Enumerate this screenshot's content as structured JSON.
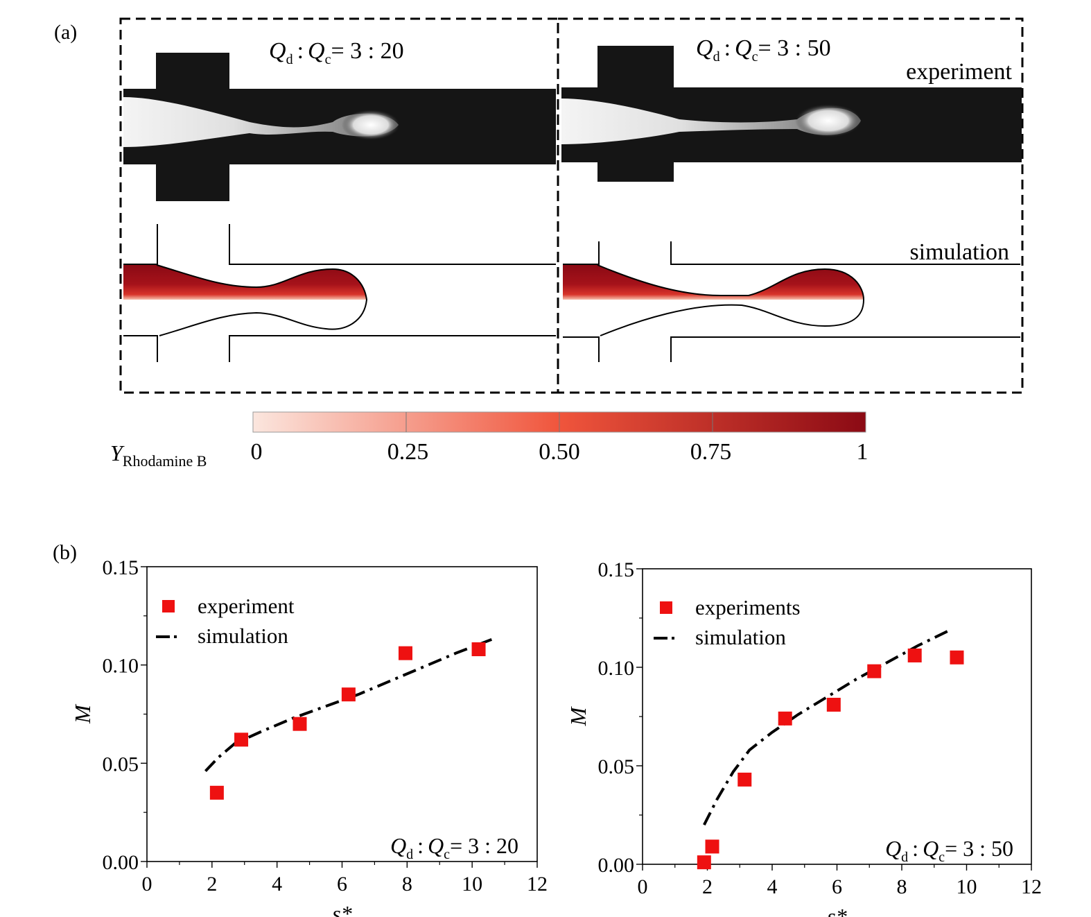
{
  "panel_a": {
    "label": "(a)",
    "left_ratio": {
      "qd": "Q",
      "qd_sub": "d",
      "colon": ":",
      "qc": "Q",
      "qc_sub": "c",
      "rhs": "= 3 : 20"
    },
    "right_ratio": {
      "qd": "Q",
      "qd_sub": "d",
      "colon": ":",
      "qc": "Q",
      "qc_sub": "c",
      "rhs": "= 3 : 50"
    },
    "experiment_label": "experiment",
    "simulation_label": "simulation",
    "colorbar": {
      "symbol": "Y",
      "symbol_sub": "Rhodamine B",
      "ticks": [
        "0",
        "0.25",
        "0.50",
        "0.75",
        "1"
      ],
      "color_low": "#fbe6de",
      "color_mid": "#f0553c",
      "color_high": "#8b0a14"
    }
  },
  "panel_b": {
    "label": "(b)"
  },
  "chart_data": [
    {
      "type": "scatter",
      "xlabel": "s*",
      "ylabel": "M",
      "xlim": [
        0,
        12
      ],
      "ylim": [
        0,
        0.15
      ],
      "xticks": [
        "0",
        "2",
        "4",
        "6",
        "8",
        "10",
        "12"
      ],
      "yticks": [
        "0.00",
        "0.05",
        "0.10",
        "0.15"
      ],
      "annotation": {
        "qd": "Q",
        "qd_sub": "d",
        "colon": ":",
        "qc": "Q",
        "qc_sub": "c",
        "rhs": "= 3 : 20"
      },
      "legend_position": "top-left",
      "series": [
        {
          "name": "experiment",
          "marker": "square",
          "color": "#ee1111",
          "x": [
            2.15,
            2.9,
            4.7,
            6.2,
            7.95,
            10.2
          ],
          "y": [
            0.035,
            0.062,
            0.07,
            0.085,
            0.106,
            0.108
          ]
        },
        {
          "name": "simulation",
          "style": "dash-dot",
          "color": "#000000",
          "x": [
            1.8,
            2.2,
            2.7,
            3.5,
            4.5,
            5.5,
            6.5,
            7.5,
            8.5,
            9.5,
            10.6
          ],
          "y": [
            0.046,
            0.053,
            0.06,
            0.066,
            0.073,
            0.079,
            0.085,
            0.092,
            0.099,
            0.106,
            0.113
          ]
        }
      ]
    },
    {
      "type": "scatter",
      "xlabel": "s*",
      "ylabel": "M",
      "xlim": [
        0,
        12
      ],
      "ylim": [
        0,
        0.15
      ],
      "xticks": [
        "0",
        "2",
        "4",
        "6",
        "8",
        "10",
        "12"
      ],
      "yticks": [
        "0.00",
        "0.05",
        "0.10",
        "0.15"
      ],
      "annotation": {
        "qd": "Q",
        "qd_sub": "d",
        "colon": ":",
        "qc": "Q",
        "qc_sub": "c",
        "rhs": "= 3 : 50"
      },
      "legend_position": "top-left",
      "series": [
        {
          "name": "experiments",
          "marker": "square",
          "color": "#ee1111",
          "x": [
            1.9,
            2.15,
            3.15,
            4.4,
            5.9,
            7.15,
            8.4,
            9.7
          ],
          "y": [
            0.001,
            0.009,
            0.043,
            0.074,
            0.081,
            0.098,
            0.106,
            0.105
          ]
        },
        {
          "name": "simulation",
          "style": "dash-dot",
          "color": "#000000",
          "x": [
            1.9,
            2.3,
            2.8,
            3.3,
            4.0,
            4.8,
            5.7,
            6.6,
            7.5,
            8.5,
            9.5
          ],
          "y": [
            0.02,
            0.033,
            0.047,
            0.058,
            0.067,
            0.076,
            0.085,
            0.094,
            0.102,
            0.111,
            0.119
          ]
        }
      ]
    }
  ]
}
